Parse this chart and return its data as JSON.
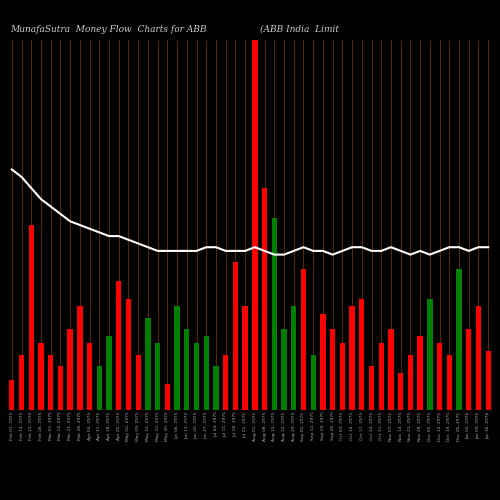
{
  "title_left": "MunafaSutra  Money Flow  Charts for ABB",
  "title_right": "(ABB India  Limit",
  "background_color": "#000000",
  "bar_colors": [
    "red",
    "red",
    "red",
    "red",
    "red",
    "red",
    "red",
    "red",
    "red",
    "green",
    "green",
    "red",
    "red",
    "red",
    "green",
    "green",
    "red",
    "green",
    "green",
    "green",
    "green",
    "green",
    "red",
    "red",
    "red",
    "red",
    "red",
    "green",
    "green",
    "green",
    "red",
    "green",
    "red",
    "red",
    "red",
    "red",
    "red",
    "red",
    "red",
    "red",
    "red",
    "red",
    "red",
    "green",
    "red",
    "red",
    "green",
    "red",
    "red",
    "red"
  ],
  "bar_heights": [
    8,
    15,
    50,
    18,
    15,
    12,
    22,
    28,
    18,
    12,
    20,
    35,
    30,
    15,
    25,
    18,
    7,
    28,
    22,
    18,
    20,
    12,
    15,
    40,
    28,
    400,
    60,
    52,
    22,
    28,
    38,
    15,
    26,
    22,
    18,
    28,
    30,
    12,
    18,
    22,
    10,
    15,
    20,
    30,
    18,
    15,
    38,
    22,
    28,
    16
  ],
  "line_values": [
    65,
    63,
    60,
    57,
    55,
    53,
    51,
    50,
    49,
    48,
    47,
    47,
    46,
    45,
    44,
    43,
    43,
    43,
    43,
    43,
    44,
    44,
    43,
    43,
    43,
    44,
    43,
    42,
    42,
    43,
    44,
    43,
    43,
    42,
    43,
    44,
    44,
    43,
    43,
    44,
    43,
    42,
    43,
    42,
    43,
    44,
    44,
    43,
    44,
    44
  ],
  "line_color": "#ffffff",
  "grid_color": "#6B3000",
  "x_labels": [
    "Feb 07, 2975",
    "Feb 14, 2975",
    "Feb 21, 2975",
    "Feb 28, 2975",
    "Mar 07, 2975",
    "Mar 14, 2975",
    "Mar 21, 2975",
    "Mar 28, 2975",
    "Apr 04, 2975",
    "Apr 11, 2975",
    "Apr 18, 2975",
    "Apr 25, 2975",
    "May 02, 2975",
    "May 09, 2975",
    "May 16, 2975",
    "May 23, 2975",
    "May 30, 2975",
    "Jun 06, 2975",
    "Jun 13, 2975",
    "Jun 20, 2975",
    "Jun 27, 2975",
    "Jul 04, 2975",
    "Jul 11, 2975",
    "Jul 18, 2975",
    "Jul 25, 2975",
    "Aug 01, 2975",
    "Aug 08, 2975",
    "Aug 15, 2975",
    "Aug 22, 2975",
    "Aug 29, 2975",
    "Sep 05, 2975",
    "Sep 12, 2975",
    "Sep 19, 2975",
    "Sep 26, 2975",
    "Oct 03, 2975",
    "Oct 10, 2975",
    "Oct 17, 2975",
    "Oct 24, 2975",
    "Oct 31, 2975",
    "Nov 07, 2975",
    "Nov 14, 2975",
    "Nov 21, 2975",
    "Nov 28, 2975",
    "Dec 05, 2975",
    "Dec 12, 2975",
    "Dec 19, 2975",
    "Dec 26, 2975",
    "Jan 02, 2976",
    "Jan 09, 2976",
    "Jan 16, 2976"
  ],
  "ylim_max": 100,
  "figsize": [
    5.0,
    5.0
  ],
  "dpi": 100
}
